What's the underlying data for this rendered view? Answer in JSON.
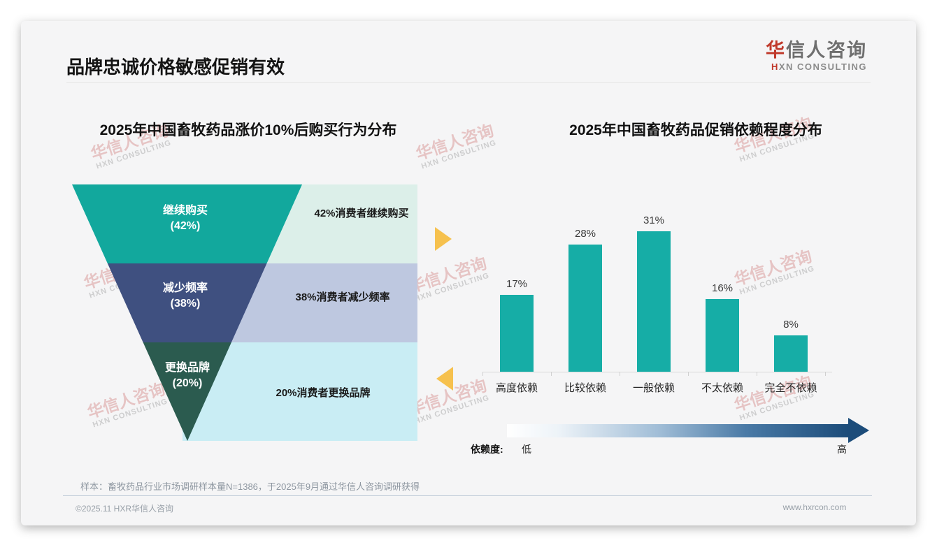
{
  "page": {
    "title": "品牌忠诚价格敏感促销有效",
    "logo": {
      "zh_accent": "华",
      "zh_rest": "信人咨询",
      "en_accent": "H",
      "en_rest": "XN CONSULTING"
    },
    "watermark": {
      "line1": "华信人咨询",
      "line2": "HXN CONSULTING"
    },
    "sample_note": "样本：畜牧药品行业市场调研样本量N=1386，于2025年9月通过华信人咨询调研获得",
    "footer": {
      "copyright": "©2025.11 HXR华信人咨询",
      "website": "www.hxrcon.com"
    }
  },
  "funnel_section": {
    "title": "2025年中国畜牧药品涨价10%后购买行为分布",
    "segments": [
      {
        "label": "继续购买",
        "pct_label": "(42%)",
        "value": 42,
        "color": "#12a89d",
        "note": "42%消费者继续购买",
        "note_bg": "#dcefe9"
      },
      {
        "label": "减少频率",
        "pct_label": "(38%)",
        "value": 38,
        "color": "#3f5080",
        "note": "38%消费者减少频率",
        "note_bg": "#bec8e0"
      },
      {
        "label": "更换品牌",
        "pct_label": "(20%)",
        "value": 20,
        "color": "#2b5b4f",
        "note": "20%消费者更换品牌",
        "note_bg": "#c9edf4"
      }
    ],
    "arrow_color": "#f6c14e"
  },
  "bar_section": {
    "title": "2025年中国畜牧药品促销依赖程度分布",
    "bar_color": "#16ada6",
    "scale": {
      "name": "依赖度:",
      "low": "低",
      "high": "高"
    },
    "gradient": {
      "start": "#ffffff",
      "end": "#1c4c7a"
    }
  },
  "chart_data": [
    {
      "type": "funnel",
      "title": "2025年中国畜牧药品涨价10%后购买行为分布",
      "categories": [
        "继续购买",
        "减少频率",
        "更换品牌"
      ],
      "values": [
        42,
        38,
        20
      ],
      "unit": "%",
      "annotations": [
        "42%消费者继续购买",
        "38%消费者减少频率",
        "20%消费者更换品牌"
      ]
    },
    {
      "type": "bar",
      "title": "2025年中国畜牧药品促销依赖程度分布",
      "categories": [
        "高度依赖",
        "比较依赖",
        "一般依赖",
        "不太依赖",
        "完全不依赖"
      ],
      "values": [
        17,
        28,
        31,
        16,
        8
      ],
      "data_labels": [
        "17%",
        "28%",
        "31%",
        "16%",
        "8%"
      ],
      "unit": "%",
      "ylim": [
        0,
        35
      ],
      "grid": false,
      "legend": false,
      "scale_annotation": {
        "name": "依赖度:",
        "from": "低",
        "to": "高"
      }
    }
  ]
}
